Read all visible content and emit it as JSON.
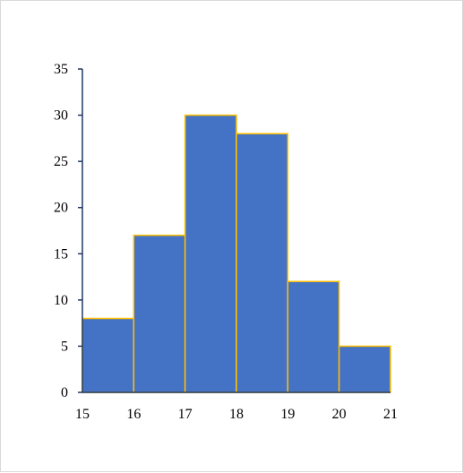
{
  "chart_data": {
    "type": "bar",
    "subtype": "histogram",
    "bin_edges": [
      15,
      16,
      17,
      18,
      19,
      20,
      21
    ],
    "values": [
      8,
      17,
      30,
      28,
      12,
      5
    ],
    "x_ticks": [
      "15",
      "16",
      "17",
      "18",
      "19",
      "20",
      "21"
    ],
    "y_ticks": [
      "0",
      "5",
      "10",
      "15",
      "20",
      "25",
      "30",
      "35"
    ],
    "ylim": [
      0,
      35
    ],
    "xlim": [
      15,
      21
    ],
    "title": "",
    "xlabel": "",
    "ylabel": "",
    "grid": false,
    "legend": "none",
    "colors": {
      "bar_fill": "#4472c4",
      "bar_edge": "#ffc000",
      "axis": "#1f3864"
    }
  }
}
